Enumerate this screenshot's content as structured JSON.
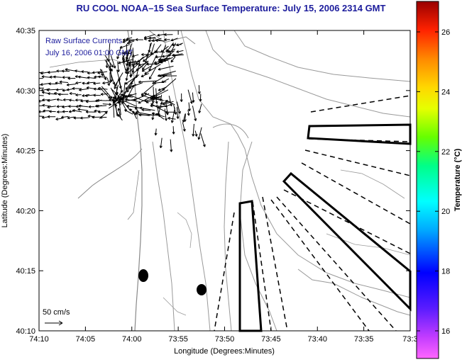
{
  "title": "RU COOL  NOAA–15  Sea Surface Temperature:  July 15, 2006 2314 GMT",
  "legend": {
    "line1": "Raw Surface Currents",
    "line2": "July 16, 2006 01:00 GMT"
  },
  "scale_label": "50 cm/s",
  "xlabel": "Longitude (Degrees:Minutes)",
  "ylabel": "Latitude (Degrees:Minutes)",
  "x_ticks": [
    "74:10",
    "74:05",
    "74:00",
    "73:55",
    "73:50",
    "73:45",
    "73:40",
    "73:35",
    "73:3"
  ],
  "y_ticks": [
    "40:35",
    "40:30",
    "40:25",
    "40:20",
    "40:15",
    "40:10"
  ],
  "colorbar": {
    "label": "Temperature (°C)",
    "ticks": [
      "26",
      "24",
      "22",
      "20",
      "18",
      "16"
    ]
  },
  "colors": {
    "title": "#1c1c9c",
    "land_outline": "#888888"
  }
}
